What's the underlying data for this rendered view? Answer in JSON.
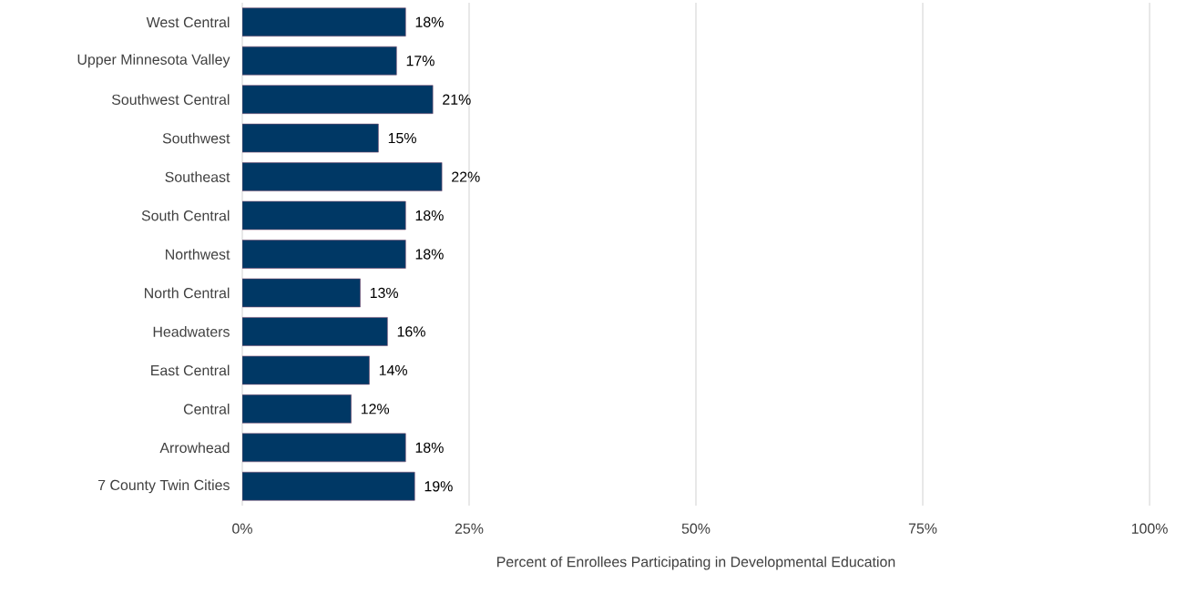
{
  "chart_data": {
    "type": "bar",
    "orientation": "horizontal",
    "xlabel": "Percent of Enrollees Participating in Developmental Education",
    "categories": [
      "West Central",
      "Upper Minnesota Valley",
      "Southwest Central",
      "Southwest",
      "Southeast",
      "South Central",
      "Northwest",
      "North Central",
      "Headwaters",
      "East Central",
      "Central",
      "Arrowhead",
      "7 County Twin Cities"
    ],
    "values": [
      18,
      17,
      21,
      15,
      22,
      18,
      18,
      13,
      16,
      14,
      12,
      18,
      19
    ],
    "value_labels": [
      "18%",
      "17%",
      "21%",
      "15%",
      "22%",
      "18%",
      "18%",
      "13%",
      "16%",
      "14%",
      "12%",
      "18%",
      "19%"
    ],
    "color": "#003865",
    "xlim": [
      0,
      100
    ],
    "xticks": [
      {
        "value": 0,
        "label": "0%"
      },
      {
        "value": 25,
        "label": "25%"
      },
      {
        "value": 50,
        "label": "50%"
      },
      {
        "value": 75,
        "label": "75%"
      },
      {
        "value": 100,
        "label": "100%"
      }
    ],
    "grid": "x"
  }
}
